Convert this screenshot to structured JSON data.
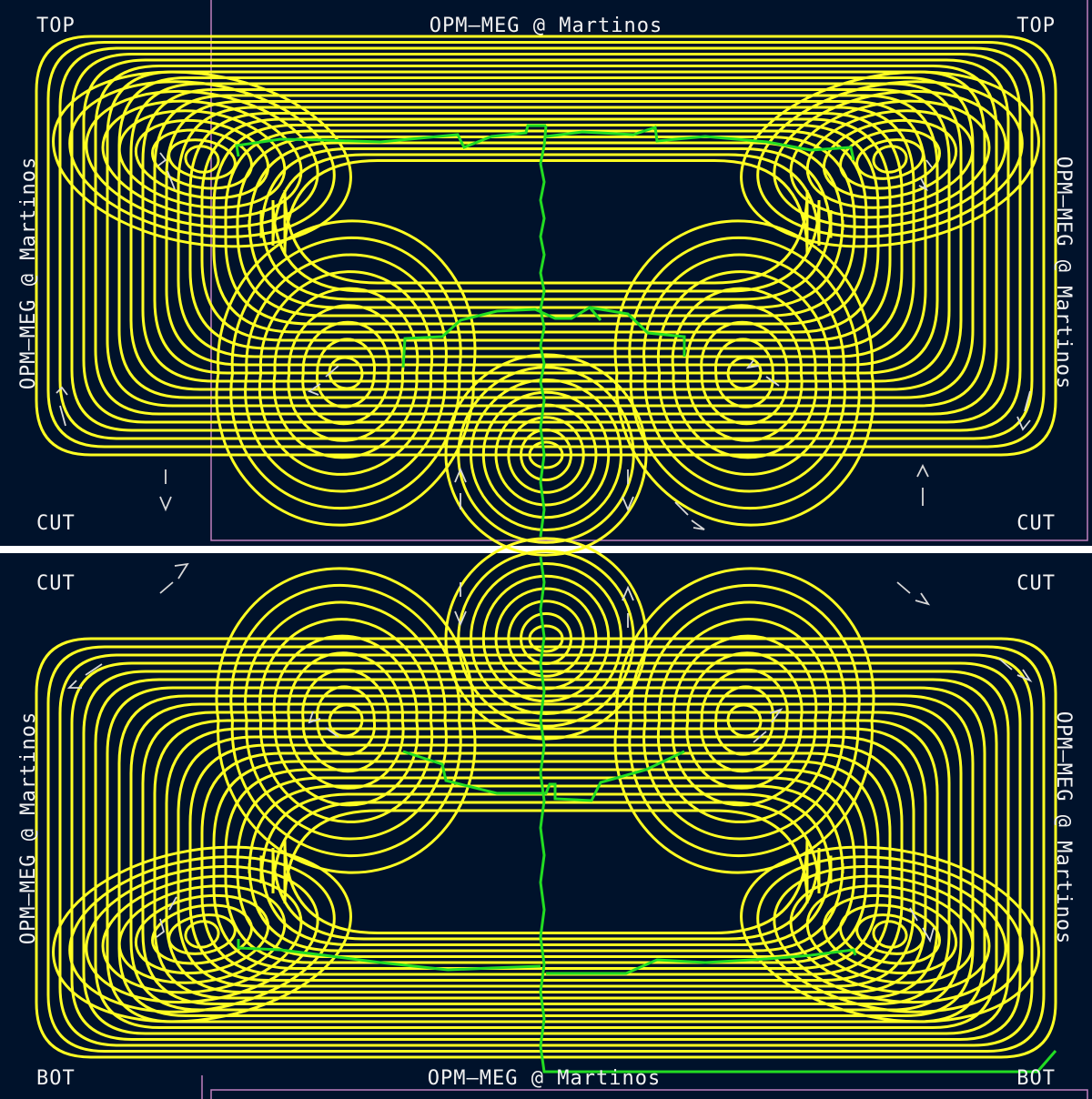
{
  "colors": {
    "board_background": "#00122b",
    "separator": "#ffffff",
    "coil_trace": "#ffff22",
    "return_trace": "#22dd22",
    "silkscreen": "#f2f2f2",
    "board_outline": "#c080c0",
    "arrow_marks": "#d8d8d8"
  },
  "top_panel": {
    "title": "OPM—MEG @ Martinos",
    "corner_top_left": "TOP",
    "corner_top_right": "TOP",
    "corner_bottom_left": "CUT",
    "corner_bottom_right": "CUT",
    "side_left": "OPM—MEG @ Martinos",
    "side_right": "OPM—MEG @ Martinos"
  },
  "bottom_panel": {
    "title": "OPM—MEG @ Martinos",
    "corner_top_left": "CUT",
    "corner_top_right": "CUT",
    "corner_bottom_left": "BOT",
    "corner_bottom_right": "BOT",
    "side_left": "OPM—MEG @ Martinos",
    "side_right": "OPM—MEG @ Martinos"
  }
}
